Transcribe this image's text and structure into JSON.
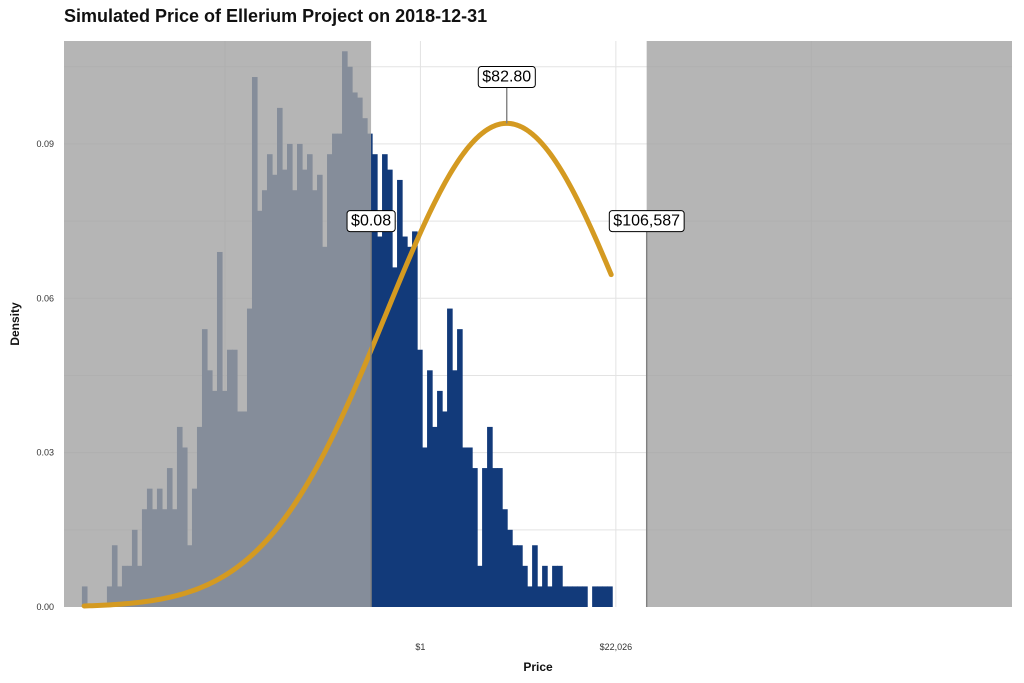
{
  "chart_data": {
    "type": "bar",
    "title": "Simulated Price of Ellerium Project on 2018-12-31",
    "xlabel": "Price",
    "ylabel": "Density",
    "x_scale": "log",
    "xlim": [
      1.2e-08,
      14000000000000.0
    ],
    "ylim": [
      0,
      0.11
    ],
    "y_ticks": [
      {
        "value": 0.0,
        "label": "0.00"
      },
      {
        "value": 0.03,
        "label": "0.03"
      },
      {
        "value": 0.06,
        "label": "0.06"
      },
      {
        "value": 0.09,
        "label": "0.09"
      }
    ],
    "x_ticks": [
      {
        "value": 1,
        "label": "$1"
      },
      {
        "value": 22026,
        "label": "$22,026"
      }
    ],
    "x_minor_gridlines": [
      4.54e-05,
      485000000.0
    ],
    "grid": true,
    "bin_edges_start": 3e-08,
    "bin_ratio": 1.2917,
    "values": [
      0.004,
      0,
      0,
      0,
      0,
      0.004,
      0.012,
      0.004,
      0.008,
      0.008,
      0.015,
      0.008,
      0.019,
      0.023,
      0.019,
      0.023,
      0.019,
      0.027,
      0.019,
      0.035,
      0.031,
      0.012,
      0.023,
      0.035,
      0.054,
      0.046,
      0.042,
      0.069,
      0.042,
      0.05,
      0.05,
      0.038,
      0.038,
      0.058,
      0.103,
      0.077,
      0.081,
      0.088,
      0.084,
      0.097,
      0.085,
      0.09,
      0.081,
      0.09,
      0.085,
      0.088,
      0.081,
      0.084,
      0.07,
      0.088,
      0.092,
      0.092,
      0.108,
      0.105,
      0.1,
      0.099,
      0.095,
      0.092,
      0.088,
      0.072,
      0.088,
      0.085,
      0.066,
      0.083,
      0.072,
      0.07,
      0.073,
      0.05,
      0.031,
      0.046,
      0.035,
      0.042,
      0.038,
      0.058,
      0.046,
      0.054,
      0.031,
      0.031,
      0.027,
      0.008,
      0.027,
      0.035,
      0.027,
      0.027,
      0.019,
      0.015,
      0.012,
      0.012,
      0.008,
      0.004,
      0.012,
      0.004,
      0.008,
      0.004,
      0.008,
      0.008,
      0.004,
      0.004,
      0.004,
      0.004,
      0.004,
      0,
      0.004,
      0.004,
      0.004,
      0.004
    ],
    "density_curve": {
      "type": "normal-on-log-price",
      "peak_price": 82.8,
      "peak_density": 0.094,
      "sigma_ln_price": 6.17
    },
    "shaded_regions": [
      {
        "from": 1.2e-08,
        "to": 0.08
      },
      {
        "from": 106587,
        "to": 14000000000000.0
      }
    ],
    "annotations": [
      {
        "value": 0.08,
        "label": "$0.08",
        "label_density": 0.075
      },
      {
        "value": 82.8,
        "label": "$82.80",
        "label_density": 0.103
      },
      {
        "value": 106587,
        "label": "$106,587",
        "label_density": 0.075
      }
    ],
    "colors": {
      "bars": "#123a7a",
      "curve": "#d49a21",
      "shade": "#a3a3a3",
      "grid": "#e3e3e3",
      "marker_line": "#808080"
    }
  }
}
